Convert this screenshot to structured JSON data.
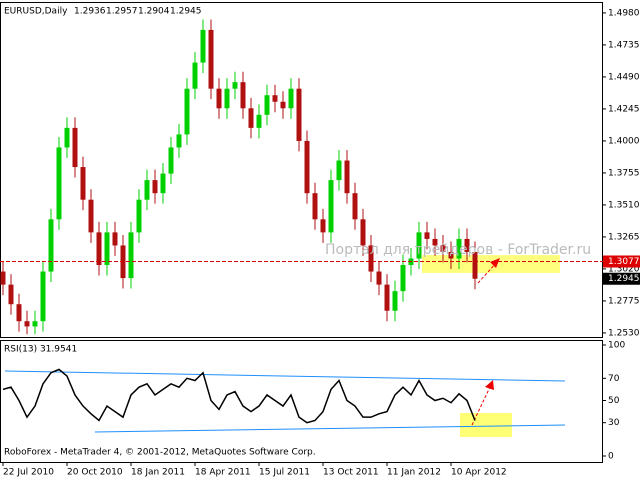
{
  "chart_data": [
    {
      "type": "candlestick",
      "title": "EURUSD,Daily",
      "ohlc_header": [
        1.2936,
        1.2957,
        1.2904,
        1.2945
      ],
      "categories": [
        "22 Jul 2010",
        null,
        null,
        null,
        null,
        null,
        null,
        null,
        "20 Oct 2010",
        null,
        null,
        null,
        null,
        null,
        null,
        null,
        "18 Jan 2011",
        null,
        null,
        null,
        null,
        null,
        null,
        null,
        "18 Apr 2011",
        null,
        null,
        null,
        null,
        null,
        null,
        null,
        "15 Jul 2011",
        null,
        null,
        null,
        null,
        null,
        null,
        null,
        "13 Oct 2011",
        null,
        null,
        null,
        null,
        null,
        null,
        null,
        "11 Jan 2012",
        null,
        null,
        null,
        null,
        null,
        null,
        null,
        "10 Apr 2012",
        null,
        null,
        null
      ],
      "open": [
        1.3,
        1.29,
        1.275,
        1.262,
        1.258,
        1.262,
        1.3,
        1.34,
        1.395,
        1.41,
        1.38,
        1.355,
        1.33,
        1.305,
        1.33,
        1.32,
        1.295,
        1.33,
        1.355,
        1.37,
        1.36,
        1.375,
        1.395,
        1.405,
        1.44,
        1.46,
        1.485,
        1.44,
        1.425,
        1.44,
        1.445,
        1.425,
        1.41,
        1.42,
        1.435,
        1.43,
        1.425,
        1.44,
        1.4,
        1.36,
        1.34,
        1.33,
        1.37,
        1.385,
        1.36,
        1.34,
        1.32,
        1.3,
        1.29,
        1.27,
        1.285,
        1.305,
        1.31,
        1.33,
        1.325,
        1.32,
        1.315,
        1.31,
        1.325,
        1.315
      ],
      "high": [
        1.308,
        1.298,
        1.283,
        1.27,
        1.27,
        1.308,
        1.348,
        1.403,
        1.418,
        1.418,
        1.388,
        1.363,
        1.338,
        1.338,
        1.338,
        1.328,
        1.338,
        1.363,
        1.378,
        1.378,
        1.383,
        1.403,
        1.413,
        1.448,
        1.468,
        1.493,
        1.493,
        1.448,
        1.448,
        1.453,
        1.453,
        1.433,
        1.428,
        1.443,
        1.443,
        1.438,
        1.448,
        1.448,
        1.408,
        1.368,
        1.348,
        1.378,
        1.393,
        1.393,
        1.368,
        1.348,
        1.328,
        1.308,
        1.298,
        1.293,
        1.313,
        1.318,
        1.338,
        1.338,
        1.333,
        1.328,
        1.323,
        1.333,
        1.333,
        1.323
      ],
      "low": [
        1.282,
        1.267,
        1.254,
        1.252,
        1.252,
        1.254,
        1.292,
        1.332,
        1.387,
        1.372,
        1.347,
        1.322,
        1.297,
        1.297,
        1.312,
        1.287,
        1.287,
        1.322,
        1.347,
        1.352,
        1.352,
        1.367,
        1.387,
        1.397,
        1.432,
        1.452,
        1.432,
        1.417,
        1.417,
        1.432,
        1.417,
        1.402,
        1.402,
        1.412,
        1.422,
        1.417,
        1.417,
        1.392,
        1.352,
        1.332,
        1.322,
        1.322,
        1.362,
        1.352,
        1.332,
        1.312,
        1.292,
        1.282,
        1.262,
        1.262,
        1.277,
        1.297,
        1.302,
        1.317,
        1.312,
        1.307,
        1.302,
        1.302,
        1.307,
        1.2865
      ],
      "close": [
        1.29,
        1.275,
        1.262,
        1.258,
        1.262,
        1.3,
        1.34,
        1.395,
        1.41,
        1.38,
        1.355,
        1.33,
        1.305,
        1.33,
        1.32,
        1.295,
        1.33,
        1.355,
        1.37,
        1.36,
        1.375,
        1.395,
        1.405,
        1.44,
        1.46,
        1.485,
        1.44,
        1.425,
        1.44,
        1.445,
        1.425,
        1.41,
        1.42,
        1.435,
        1.43,
        1.425,
        1.44,
        1.4,
        1.36,
        1.34,
        1.33,
        1.37,
        1.385,
        1.36,
        1.34,
        1.32,
        1.3,
        1.29,
        1.27,
        1.285,
        1.305,
        1.31,
        1.33,
        1.325,
        1.32,
        1.315,
        1.31,
        1.325,
        1.315,
        1.2945
      ],
      "up_color": "#00d000",
      "down_color": "#b01010",
      "ylim": [
        1.2499,
        1.5056
      ],
      "yticks": [
        {
          "value": 1.498,
          "label": "1.4980"
        },
        {
          "value": 1.4735,
          "label": "1.4735"
        },
        {
          "value": 1.449,
          "label": "1.4490"
        },
        {
          "value": 1.4245,
          "label": "1.4245"
        },
        {
          "value": 1.4,
          "label": "1.4000"
        },
        {
          "value": 1.3755,
          "label": "1.3755"
        },
        {
          "value": 1.351,
          "label": "1.3510"
        },
        {
          "value": 1.3265,
          "label": "1.3265"
        },
        {
          "value": 1.302,
          "label": "1.3020"
        },
        {
          "value": 1.2775,
          "label": "1.2775"
        },
        {
          "value": 1.253,
          "label": "1.2530"
        }
      ],
      "level_line": 1.3077,
      "level_color": "#dd0000",
      "current_price": 1.2945,
      "watermark": "Портал для трейдеров - ForTrader.ru"
    },
    {
      "type": "line",
      "title": "RSI(13) 31.9541",
      "values": [
        60,
        62,
        50,
        35,
        45,
        65,
        75,
        78,
        72,
        55,
        45,
        38,
        32,
        45,
        40,
        35,
        55,
        62,
        65,
        55,
        60,
        65,
        62,
        70,
        68,
        75,
        50,
        42,
        55,
        58,
        45,
        40,
        45,
        55,
        50,
        45,
        55,
        35,
        30,
        32,
        40,
        60,
        68,
        50,
        45,
        35,
        35,
        38,
        40,
        55,
        62,
        55,
        68,
        55,
        50,
        52,
        48,
        56,
        50,
        31.9541
      ],
      "color": "#000000",
      "ylim": [
        -5.4,
        103.6
      ],
      "yticks": [
        100,
        70,
        50,
        30,
        0
      ],
      "footer": "RoboForex - MetaTrader 4, © 2001-2012, MetaQuotes Software Corp."
    }
  ]
}
